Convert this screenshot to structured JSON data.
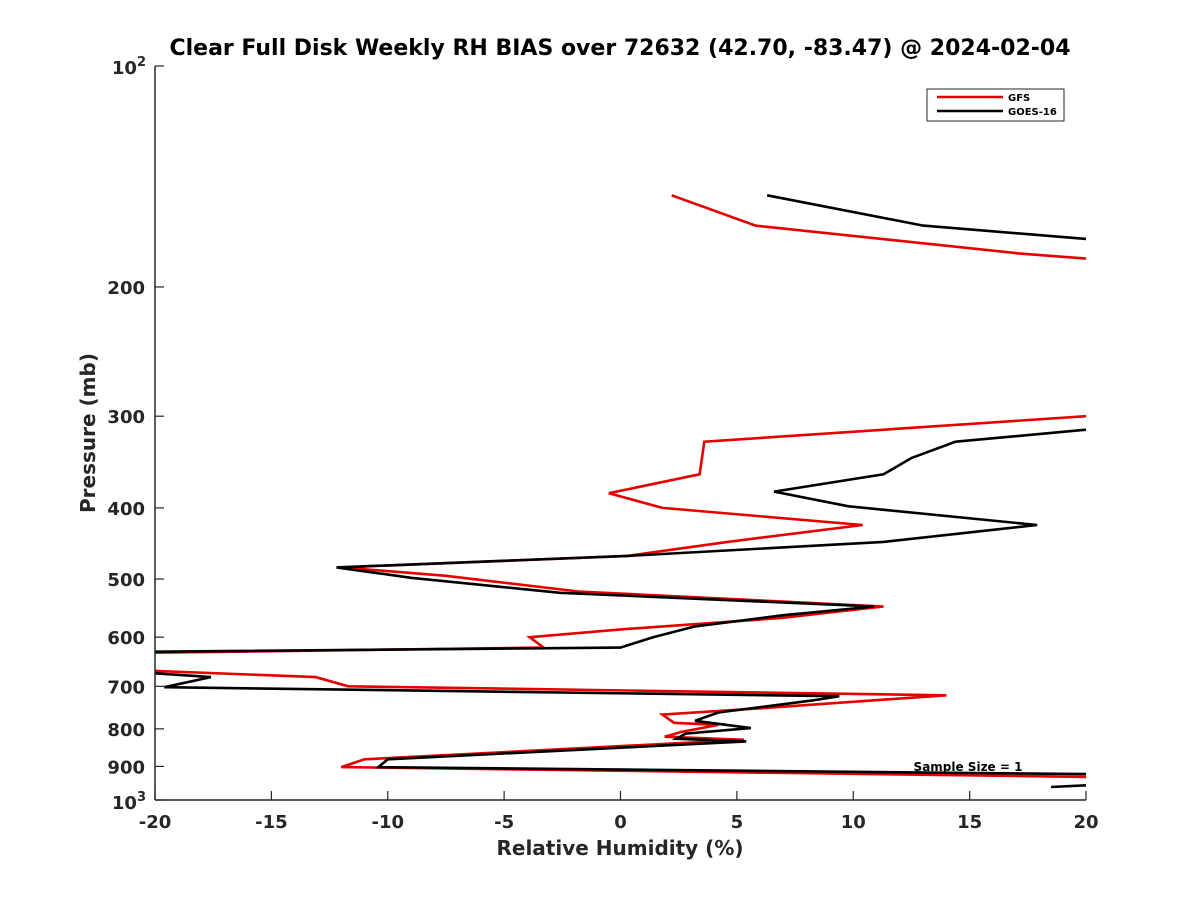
{
  "chart_data": {
    "type": "line",
    "title": "Clear Full Disk Weekly RH BIAS over 72632 (42.70, -83.47) @ 2024-02-04",
    "xlabel": "Relative Humidity (%)",
    "ylabel": "Pressure (mb)",
    "xlim": [
      -20,
      20
    ],
    "ylim": [
      100,
      1000
    ],
    "y_scale": "log",
    "y_reversed": true,
    "grid": false,
    "legend_position": "top-right",
    "x_ticks": [
      "-20",
      "-15",
      "-10",
      "-5",
      "0",
      "5",
      "10",
      "15",
      "20"
    ],
    "y_ticks": [
      "200",
      "300",
      "400",
      "500",
      "600",
      "700",
      "800",
      "900"
    ],
    "y_top_label": {
      "base": "10",
      "exp": "2"
    },
    "y_bottom_label": {
      "base": "10",
      "exp": "3"
    },
    "annotation": "Sample Size = 1",
    "series": [
      {
        "name": "GFS",
        "color": "#e60000",
        "segments": [
          [
            [
              2.2,
              150
            ],
            [
              5.8,
              165
            ],
            [
              17.1,
              180
            ],
            [
              20.0,
              183
            ]
          ],
          [
            [
              20.0,
              300
            ],
            [
              3.6,
              325
            ],
            [
              3.4,
              360
            ],
            [
              -0.5,
              382
            ],
            [
              1.8,
              400
            ],
            [
              10.4,
              422
            ],
            [
              4.6,
              445
            ],
            [
              0.3,
              465
            ],
            [
              -12.0,
              482
            ],
            [
              -7.5,
              495
            ],
            [
              -1.8,
              520
            ],
            [
              11.3,
              545
            ],
            [
              6.9,
              565
            ],
            [
              0.2,
              585
            ],
            [
              -3.9,
              600
            ],
            [
              -3.3,
              620
            ],
            [
              -20.0,
              630
            ]
          ],
          [
            [
              -20.0,
              667
            ],
            [
              -13.1,
              680
            ],
            [
              -11.7,
              700
            ],
            [
              14.0,
              720
            ],
            [
              6.0,
              750
            ],
            [
              1.8,
              765
            ],
            [
              2.3,
              785
            ],
            [
              4.2,
              790
            ],
            [
              2.6,
              808
            ],
            [
              1.9,
              820
            ],
            [
              5.3,
              828
            ],
            [
              -11.0,
              880
            ],
            [
              -12.0,
              902
            ],
            [
              20.0,
              930
            ]
          ]
        ]
      },
      {
        "name": "GOES-16",
        "color": "#000000",
        "segments": [
          [
            [
              6.3,
              150
            ],
            [
              13.0,
              165
            ],
            [
              20.0,
              172
            ]
          ],
          [
            [
              20.0,
              313
            ],
            [
              14.4,
              325
            ],
            [
              12.5,
              342
            ],
            [
              11.3,
              360
            ],
            [
              6.6,
              380
            ],
            [
              9.8,
              398
            ],
            [
              17.9,
              422
            ],
            [
              11.3,
              445
            ],
            [
              0.3,
              465
            ],
            [
              -12.2,
              482
            ],
            [
              -9.0,
              498
            ],
            [
              -2.6,
              522
            ],
            [
              10.9,
              545
            ],
            [
              7.0,
              560
            ],
            [
              3.2,
              580
            ],
            [
              1.4,
              600
            ],
            [
              0.0,
              620
            ],
            [
              -20.0,
              628
            ]
          ],
          [
            [
              -20.0,
              672
            ],
            [
              -17.6,
              680
            ],
            [
              -19.6,
              702
            ],
            [
              9.4,
              722
            ],
            [
              8.2,
              732
            ],
            [
              4.2,
              760
            ],
            [
              3.2,
              780
            ],
            [
              5.6,
              798
            ],
            [
              2.8,
              812
            ],
            [
              2.4,
              825
            ],
            [
              5.4,
              832
            ],
            [
              -10.0,
              880
            ],
            [
              -10.4,
              902
            ],
            [
              20.0,
              922
            ]
          ],
          [
            [
              18.5,
              960
            ],
            [
              20.0,
              955
            ]
          ]
        ]
      }
    ]
  }
}
